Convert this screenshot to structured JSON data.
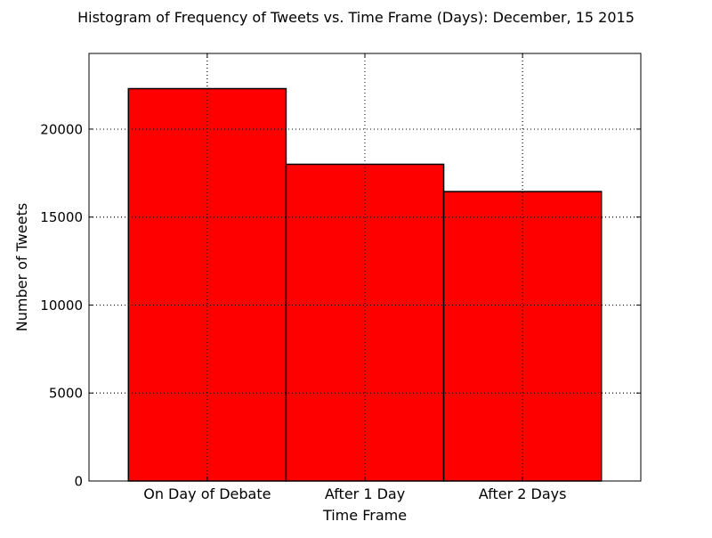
{
  "chart_data": {
    "type": "bar",
    "title": "Histogram of Frequency of Tweets vs. Time Frame (Days): December, 15 2015",
    "xlabel": "Time Frame",
    "ylabel": "Number of Tweets",
    "categories": [
      "On Day of Debate",
      "After 1 Day",
      "After 2 Days"
    ],
    "values": [
      22300,
      18000,
      16450
    ],
    "ylim": [
      0,
      24300
    ],
    "yticks": [
      0,
      5000,
      10000,
      15000,
      20000
    ],
    "ytick_labels": [
      "0",
      "5000",
      "10000",
      "15000",
      "20000"
    ],
    "grid": true,
    "bar_color": "#ff0000",
    "edge_color": "#000000"
  }
}
